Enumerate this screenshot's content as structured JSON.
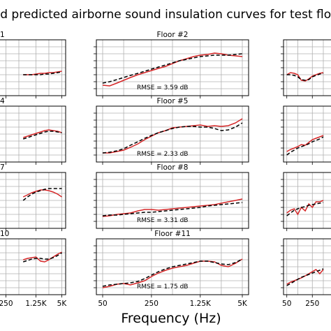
{
  "figure": {
    "title": "nd predicted airborne sound insulation curves for test floo",
    "xlabel": "Frequency (Hz)",
    "x_ticks": [
      "50",
      "250",
      "1.25K",
      "5K"
    ]
  },
  "legend": {
    "measured_color": "#d62728",
    "predicted_color": "#000000"
  },
  "chart_data": [
    {
      "type": "line",
      "panel": "row1-left",
      "title": "1",
      "x": [
        50,
        63,
        80,
        100,
        125,
        160,
        200,
        250,
        315,
        400,
        500,
        630,
        800,
        1000,
        1250,
        1600,
        2000,
        2500,
        3150,
        4000,
        5000
      ],
      "series": [
        {
          "values": [
            null,
            null,
            null,
            null,
            null,
            null,
            null,
            null,
            null,
            null,
            null,
            30,
            30,
            30,
            31,
            32,
            32,
            33,
            33,
            34,
            35
          ]
        },
        {
          "values": [
            null,
            null,
            null,
            null,
            null,
            null,
            null,
            null,
            null,
            null,
            null,
            30,
            30,
            30,
            30,
            30,
            31,
            31,
            32,
            33,
            34
          ]
        }
      ],
      "ylim": [
        0,
        80
      ]
    },
    {
      "type": "line",
      "panel": "row1-center",
      "title": "Floor #2",
      "rmse": "RMSE = 3.59 dB",
      "x": [
        50,
        63,
        80,
        100,
        125,
        160,
        200,
        250,
        315,
        400,
        500,
        630,
        800,
        1000,
        1250,
        1600,
        2000,
        2500,
        3150,
        4000,
        5000
      ],
      "series": [
        {
          "values": [
            15,
            14,
            18,
            22,
            26,
            30,
            33,
            36,
            39,
            42,
            46,
            50,
            53,
            56,
            58,
            59,
            61,
            60,
            58,
            57,
            56
          ]
        },
        {
          "values": [
            18,
            20,
            23,
            26,
            29,
            32,
            35,
            38,
            41,
            44,
            47,
            50,
            52,
            54,
            56,
            57,
            58,
            58,
            58,
            59,
            60
          ]
        }
      ],
      "ylim": [
        0,
        80
      ]
    },
    {
      "type": "line",
      "panel": "row1-right",
      "x": [
        50,
        63,
        80,
        100,
        125,
        160,
        200,
        250,
        315,
        400,
        500
      ],
      "series": [
        {
          "values": [
            30,
            33,
            32,
            30,
            22,
            21,
            24,
            28,
            30,
            32,
            33
          ]
        },
        {
          "values": [
            30,
            30,
            29,
            27,
            23,
            22,
            23,
            27,
            29,
            31,
            32
          ]
        }
      ],
      "ylim": [
        0,
        80
      ]
    },
    {
      "type": "line",
      "panel": "row2-left",
      "title": "4",
      "x": [
        50,
        63,
        80,
        100,
        125,
        160,
        200,
        250,
        315,
        400,
        500,
        630,
        800,
        1000,
        1250,
        1600,
        2000,
        2500,
        3150,
        4000,
        5000
      ],
      "series": [
        {
          "values": [
            null,
            null,
            null,
            null,
            null,
            null,
            null,
            null,
            null,
            null,
            null,
            35,
            37,
            39,
            41,
            43,
            45,
            46,
            45,
            44,
            42
          ]
        },
        {
          "values": [
            null,
            null,
            null,
            null,
            null,
            null,
            null,
            null,
            null,
            null,
            null,
            33,
            35,
            37,
            39,
            41,
            43,
            44,
            44,
            43,
            42
          ]
        }
      ],
      "ylim": [
        0,
        80
      ]
    },
    {
      "type": "line",
      "panel": "row2-center",
      "title": "Floor #5",
      "rmse": "RMSE = 2.33 dB",
      "x": [
        50,
        63,
        80,
        100,
        125,
        160,
        200,
        250,
        315,
        400,
        500,
        630,
        800,
        1000,
        1250,
        1600,
        2000,
        2500,
        3150,
        4000,
        5000
      ],
      "series": [
        {
          "values": [
            13,
            13,
            15,
            17,
            21,
            26,
            32,
            37,
            42,
            45,
            49,
            50,
            51,
            52,
            53,
            51,
            52,
            51,
            52,
            56,
            62
          ]
        },
        {
          "values": [
            13,
            14,
            16,
            19,
            24,
            29,
            34,
            38,
            42,
            45,
            48,
            50,
            51,
            51,
            50,
            50,
            48,
            45,
            46,
            50,
            56
          ]
        }
      ],
      "ylim": [
        0,
        80
      ]
    },
    {
      "type": "line",
      "panel": "row2-right",
      "x": [
        50,
        63,
        80,
        100,
        125,
        160,
        200,
        250,
        315,
        400,
        500
      ],
      "series": [
        {
          "values": [
            15,
            18,
            20,
            22,
            25,
            24,
            28,
            32,
            34,
            36,
            38
          ]
        },
        {
          "values": [
            10,
            14,
            17,
            20,
            22,
            24,
            26,
            29,
            31,
            33,
            36
          ]
        }
      ],
      "ylim": [
        0,
        80
      ]
    },
    {
      "type": "line",
      "panel": "row3-left",
      "title": "7",
      "x": [
        50,
        63,
        80,
        100,
        125,
        160,
        200,
        250,
        315,
        400,
        500,
        630,
        800,
        1000,
        1250,
        1600,
        2000,
        2500,
        3150,
        4000,
        5000
      ],
      "series": [
        {
          "values": [
            null,
            null,
            null,
            null,
            null,
            null,
            null,
            null,
            null,
            null,
            null,
            45,
            48,
            51,
            53,
            55,
            55,
            54,
            52,
            49,
            45
          ]
        },
        {
          "values": [
            null,
            null,
            null,
            null,
            null,
            null,
            null,
            null,
            null,
            null,
            null,
            40,
            45,
            49,
            52,
            54,
            56,
            57,
            57,
            57,
            57
          ]
        }
      ],
      "ylim": [
        0,
        80
      ]
    },
    {
      "type": "line",
      "panel": "row3-center",
      "title": "Floor #8",
      "rmse": "RMSE = 3.31 dB",
      "x": [
        50,
        63,
        80,
        100,
        125,
        160,
        200,
        250,
        315,
        400,
        500,
        630,
        800,
        1000,
        1250,
        1600,
        2000,
        2500,
        3150,
        4000,
        5000
      ],
      "series": [
        {
          "values": [
            17,
            18,
            20,
            21,
            22,
            25,
            27,
            27,
            26,
            27,
            28,
            29,
            30,
            31,
            32,
            33,
            34,
            36,
            38,
            40,
            42
          ]
        },
        {
          "values": [
            18,
            19,
            19,
            20,
            21,
            22,
            23,
            23,
            24,
            25,
            26,
            27,
            28,
            29,
            30,
            32,
            33,
            34,
            35,
            36,
            37
          ]
        }
      ],
      "ylim": [
        0,
        80
      ]
    },
    {
      "type": "line",
      "panel": "row3-right",
      "x": [
        50,
        63,
        80,
        100,
        125,
        160,
        200,
        250,
        315,
        400,
        500
      ],
      "series": [
        {
          "values": [
            22,
            26,
            28,
            20,
            30,
            25,
            35,
            30,
            38,
            38,
            40
          ]
        },
        {
          "values": [
            18,
            22,
            26,
            28,
            30,
            31,
            33,
            34,
            35,
            36,
            37
          ]
        }
      ],
      "ylim": [
        0,
        80
      ]
    },
    {
      "type": "line",
      "panel": "row4-left",
      "title": "10",
      "x": [
        50,
        63,
        80,
        100,
        125,
        160,
        200,
        250,
        315,
        400,
        500,
        630,
        800,
        1000,
        1250,
        1600,
        2000,
        2500,
        3150,
        4000,
        5000
      ],
      "series": [
        {
          "values": [
            null,
            null,
            null,
            null,
            null,
            null,
            null,
            null,
            null,
            null,
            null,
            50,
            52,
            53,
            54,
            48,
            47,
            50,
            54,
            58,
            61
          ]
        },
        {
          "values": [
            null,
            null,
            null,
            null,
            null,
            null,
            null,
            null,
            null,
            null,
            null,
            47,
            49,
            51,
            52,
            52,
            51,
            51,
            53,
            56,
            60
          ]
        }
      ],
      "ylim": [
        0,
        80
      ]
    },
    {
      "type": "line",
      "panel": "row4-center",
      "title": "Floor #11",
      "rmse": "RMSE = 1.75 dB",
      "x": [
        50,
        63,
        80,
        100,
        125,
        160,
        200,
        250,
        315,
        400,
        500,
        630,
        800,
        1000,
        1250,
        1600,
        2000,
        2500,
        3150,
        4000,
        5000
      ],
      "series": [
        {
          "values": [
            10,
            12,
            15,
            16,
            14,
            17,
            20,
            26,
            31,
            35,
            38,
            40,
            42,
            45,
            48,
            48,
            47,
            42,
            40,
            45,
            51
          ]
        },
        {
          "values": [
            12,
            14,
            15,
            16,
            17,
            19,
            23,
            28,
            33,
            37,
            40,
            42,
            44,
            46,
            48,
            48,
            46,
            44,
            43,
            46,
            51
          ]
        }
      ],
      "ylim": [
        0,
        80
      ]
    },
    {
      "type": "line",
      "panel": "row4-right",
      "x": [
        50,
        63,
        80,
        100,
        125,
        160,
        200,
        250,
        315,
        400,
        500
      ],
      "series": [
        {
          "values": [
            15,
            18,
            20,
            22,
            24,
            27,
            30,
            33,
            36,
            30,
            36
          ]
        },
        {
          "values": [
            13,
            16,
            19,
            22,
            25,
            27,
            29,
            31,
            33,
            35,
            37
          ]
        }
      ],
      "ylim": [
        0,
        80
      ]
    }
  ]
}
